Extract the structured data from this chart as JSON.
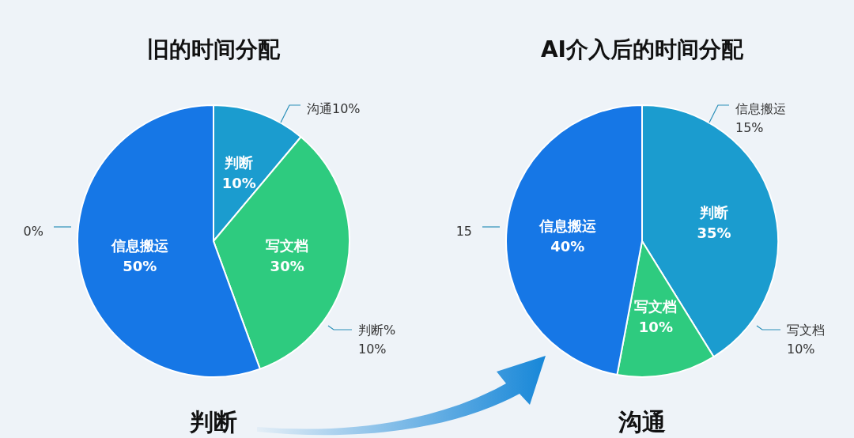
{
  "chart_data": [
    {
      "type": "pie",
      "title": "旧的时间分配",
      "categories": [
        "判断",
        "写文档",
        "信息搬运"
      ],
      "values": [
        10,
        30,
        50
      ],
      "value_labels": [
        "10%",
        "30%",
        "50%"
      ],
      "colors": [
        "#1b9ccf",
        "#2ecb7f",
        "#1677e6"
      ],
      "annotations": [
        "沟通10%",
        "判断%\n10%",
        "0%",
        "判断"
      ]
    },
    {
      "type": "pie",
      "title": "AI介入后的时间分配",
      "categories": [
        "判断",
        "写文档",
        "信息搬运"
      ],
      "values": [
        35,
        10,
        40
      ],
      "value_labels": [
        "35%",
        "10%",
        "40%"
      ],
      "colors": [
        "#1b9ccf",
        "#2ecb7f",
        "#1677e6"
      ],
      "annotations": [
        "信息搬运\n15%",
        "写文档\n10%",
        "15",
        "沟通"
      ]
    }
  ]
}
